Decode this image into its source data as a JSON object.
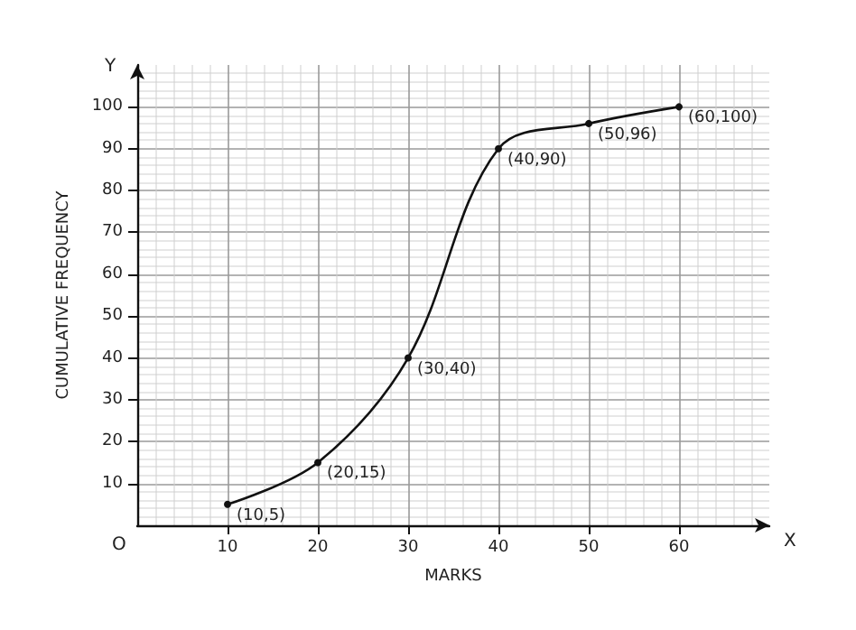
{
  "chart_data": {
    "type": "line",
    "xlabel": "MARKS",
    "ylabel": "CUMULATIVE FREQUENCY",
    "x": [
      10,
      20,
      30,
      40,
      50,
      60
    ],
    "series": [
      {
        "color": "#111111",
        "values": [
          5,
          15,
          40,
          90,
          96,
          100
        ]
      }
    ],
    "xlim": [
      0,
      70
    ],
    "ylim": [
      0,
      110
    ],
    "xticks": [
      10,
      20,
      30,
      40,
      50,
      60
    ],
    "yticks": [
      10,
      20,
      30,
      40,
      50,
      60,
      70,
      80,
      90,
      100
    ],
    "grid": true,
    "marker": "circle",
    "line_style": "solid",
    "annotations": [
      "O",
      "Y",
      "X",
      {
        "text": "(10,5)",
        "x": 10,
        "y": 5
      },
      {
        "text": "(20,15)",
        "x": 20,
        "y": 15
      },
      {
        "text": "(30,40)",
        "x": 30,
        "y": 40
      },
      {
        "text": "(40,90)",
        "x": 40,
        "y": 90
      },
      {
        "text": "(50,96)",
        "x": 50,
        "y": 96
      },
      {
        "text": "(60,100)",
        "x": 60,
        "y": 100
      }
    ]
  }
}
